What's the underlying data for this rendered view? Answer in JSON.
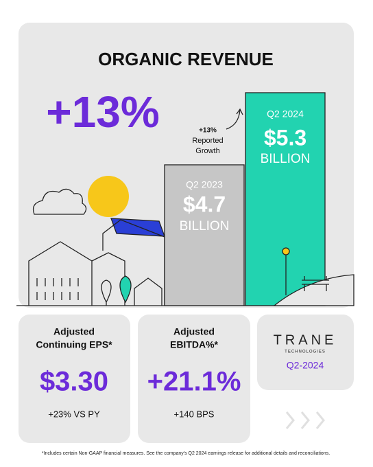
{
  "hero": {
    "title": "ORGANIC REVENUE",
    "growth": "+13%",
    "annotation": [
      "+13%",
      "Reported",
      "Growth"
    ],
    "bars": [
      {
        "period": "Q2 2023",
        "value": "$4.7",
        "unit": "BILLION"
      },
      {
        "period": "Q2 2024",
        "value": "$5.3",
        "unit": "BILLION"
      }
    ]
  },
  "cards": [
    {
      "label": [
        "Adjusted",
        "Continuing EPS*"
      ],
      "value": "$3.30",
      "change": "+23% VS PY"
    },
    {
      "label": [
        "Adjusted",
        "EBITDA%*"
      ],
      "value": "+21.1%",
      "change": "+140 BPS"
    }
  ],
  "brand": {
    "logo": "TRANE",
    "sub": "TECHNOLOGIES",
    "period": "Q2-2024"
  },
  "footnote": "*Includes certain Non-GAAP financial measures. See the company's Q2 2024 earnings release for additional details and reconciliations."
}
